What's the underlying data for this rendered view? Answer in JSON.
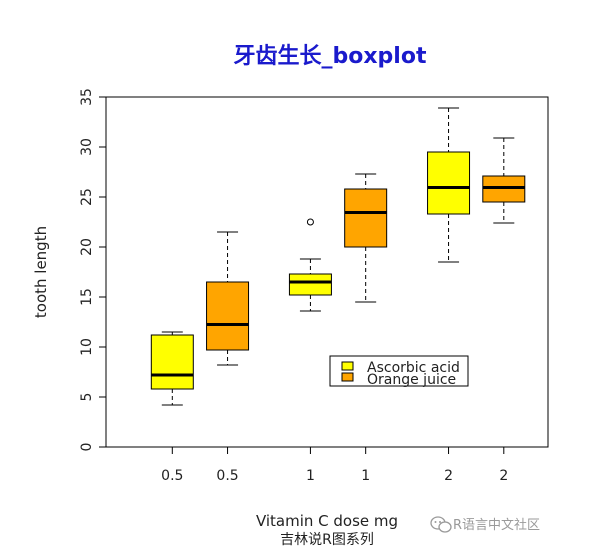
{
  "chart_data": {
    "type": "boxplot",
    "title": "牙齿生长_boxplot",
    "xlabel": "Vitamin C dose mg",
    "ylabel": "tooth length",
    "subcaption": "吉林说R图系列",
    "ylim": [
      0,
      35
    ],
    "yticks": [
      0,
      5,
      10,
      15,
      20,
      25,
      30,
      35
    ],
    "legend_position": "center-right",
    "grid": false,
    "series": [
      {
        "name": "Ascorbic acid",
        "color": "#ffff00"
      },
      {
        "name": "Orange juice",
        "color": "#ffa500"
      }
    ],
    "boxes": [
      {
        "category": "0.5",
        "series": "Ascorbic acid",
        "min": 4.2,
        "q1": 5.8,
        "median": 7.2,
        "q3": 11.2,
        "max": 11.5,
        "outliers": []
      },
      {
        "category": "0.5",
        "series": "Orange juice",
        "min": 8.2,
        "q1": 9.7,
        "median": 12.25,
        "q3": 16.5,
        "max": 21.5,
        "outliers": []
      },
      {
        "category": "1",
        "series": "Ascorbic acid",
        "min": 13.6,
        "q1": 15.2,
        "median": 16.5,
        "q3": 17.3,
        "max": 18.8,
        "outliers": [
          22.5
        ]
      },
      {
        "category": "1",
        "series": "Orange juice",
        "min": 14.5,
        "q1": 20.0,
        "median": 23.45,
        "q3": 25.8,
        "max": 27.3,
        "outliers": []
      },
      {
        "category": "2",
        "series": "Ascorbic acid",
        "min": 18.5,
        "q1": 23.3,
        "median": 25.95,
        "q3": 29.5,
        "max": 33.9,
        "outliers": []
      },
      {
        "category": "2",
        "series": "Orange juice",
        "min": 22.4,
        "q1": 24.5,
        "median": 25.95,
        "q3": 27.1,
        "max": 30.9,
        "outliers": []
      }
    ]
  },
  "watermark": {
    "text": "R语言中文社区",
    "icon": "wechat-icon"
  }
}
